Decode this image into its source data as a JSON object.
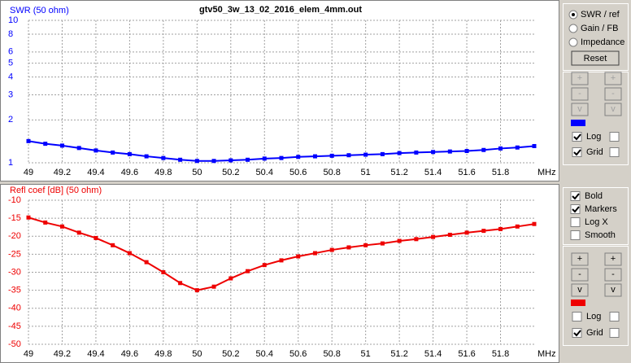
{
  "chart_data": [
    {
      "type": "line",
      "title": "gtv50_3w_13_02_2016_elem_4mm.out",
      "ylabel": "SWR (50 ohm)",
      "xlabel": "MHz",
      "color": "#0000ff",
      "log_y": true,
      "grid": true,
      "x": [
        49,
        49.1,
        49.2,
        49.3,
        49.4,
        49.5,
        49.6,
        49.7,
        49.8,
        49.9,
        50,
        50.1,
        50.2,
        50.3,
        50.4,
        50.5,
        50.6,
        50.7,
        50.8,
        50.9,
        51,
        51.1,
        51.2,
        51.3,
        51.4,
        51.5,
        51.6,
        51.7,
        51.8,
        51.9,
        52
      ],
      "values": [
        1.42,
        1.36,
        1.32,
        1.27,
        1.22,
        1.18,
        1.15,
        1.11,
        1.08,
        1.05,
        1.03,
        1.03,
        1.04,
        1.05,
        1.07,
        1.08,
        1.1,
        1.11,
        1.12,
        1.13,
        1.14,
        1.15,
        1.17,
        1.18,
        1.19,
        1.2,
        1.21,
        1.23,
        1.26,
        1.28,
        1.31
      ],
      "xlim": [
        49,
        52
      ],
      "xticks": [
        49,
        49.2,
        49.4,
        49.6,
        49.8,
        50,
        50.2,
        50.4,
        50.6,
        50.8,
        51,
        51.2,
        51.4,
        51.6,
        51.8
      ],
      "ylim": [
        1,
        10
      ],
      "yticks": [
        1,
        2,
        3,
        4,
        5,
        6,
        8,
        10
      ]
    },
    {
      "type": "line",
      "ylabel": "Refl coef [dB] (50 ohm)",
      "xlabel": "MHz",
      "color": "#ee0000",
      "log_y": false,
      "grid": true,
      "x": [
        49,
        49.1,
        49.2,
        49.3,
        49.4,
        49.5,
        49.6,
        49.7,
        49.8,
        49.9,
        50,
        50.1,
        50.2,
        50.3,
        50.4,
        50.5,
        50.6,
        50.7,
        50.8,
        50.9,
        51,
        51.1,
        51.2,
        51.3,
        51.4,
        51.5,
        51.6,
        51.7,
        51.8,
        51.9,
        52
      ],
      "values": [
        -14.8,
        -16.2,
        -17.3,
        -19,
        -20.5,
        -22.5,
        -24.7,
        -27.2,
        -30,
        -33,
        -35,
        -34,
        -31.7,
        -29.7,
        -28,
        -26.7,
        -25.6,
        -24.7,
        -23.8,
        -23.1,
        -22.5,
        -22,
        -21.3,
        -20.8,
        -20.2,
        -19.6,
        -19,
        -18.5,
        -18,
        -17.3,
        -16.6
      ],
      "xlim": [
        49,
        52
      ],
      "xticks": [
        49,
        49.2,
        49.4,
        49.6,
        49.8,
        50,
        50.2,
        50.4,
        50.6,
        50.8,
        51,
        51.2,
        51.4,
        51.6,
        51.8
      ],
      "ylim": [
        -50,
        -10
      ],
      "yticks": [
        -10,
        -15,
        -20,
        -25,
        -30,
        -35,
        -40,
        -45,
        -50
      ]
    }
  ],
  "controls": {
    "top": {
      "radios": [
        {
          "label": "SWR / ref",
          "checked": true
        },
        {
          "label": "Gain / FB",
          "checked": false
        },
        {
          "label": "Impedance",
          "checked": false
        }
      ],
      "reset": "Reset",
      "buttons_enabled": false,
      "buttons": [
        "+",
        "+",
        "-",
        "-",
        "v",
        "v"
      ],
      "checkboxes": [
        {
          "label": "Log",
          "checked": true
        },
        {
          "label": "Grid",
          "checked": true
        }
      ]
    },
    "bottom": {
      "options": [
        {
          "label": "Bold",
          "checked": true
        },
        {
          "label": "Markers",
          "checked": true
        },
        {
          "label": "Log X",
          "checked": false
        },
        {
          "label": "Smooth",
          "checked": false
        }
      ],
      "buttons_enabled": true,
      "buttons": [
        "+",
        "+",
        "-",
        "-",
        "v",
        "v"
      ],
      "checkboxes": [
        {
          "label": "Log",
          "checked": false
        },
        {
          "label": "Grid",
          "checked": true
        }
      ]
    }
  }
}
